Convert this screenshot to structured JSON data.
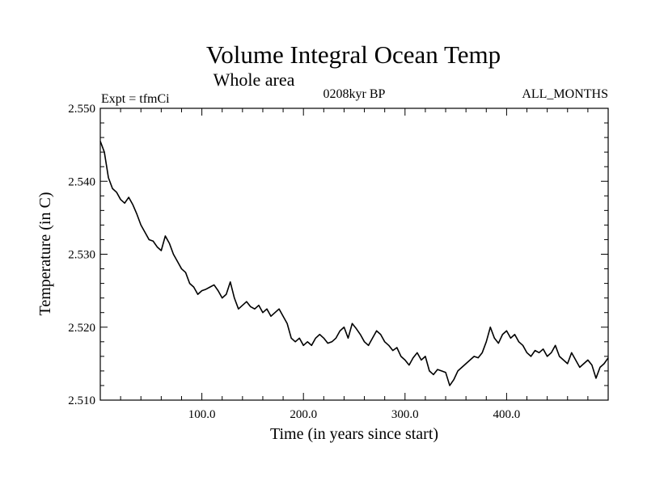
{
  "chart_data": {
    "type": "line",
    "title": "Volume Integral Ocean Temp",
    "subtitle": "Whole area",
    "annotations": {
      "left": "Expt = tfmCi",
      "center": "0208kyr BP",
      "right": "ALL_MONTHS"
    },
    "xlabel": "Time (in years since start)",
    "ylabel": "Temperature (in C)",
    "xlim": [
      0,
      500
    ],
    "ylim": [
      2.51,
      2.55
    ],
    "x_ticks": [
      100,
      200,
      300,
      400
    ],
    "x_tick_labels": [
      "100.0",
      "200.0",
      "300.0",
      "400.0"
    ],
    "y_ticks": [
      2.51,
      2.52,
      2.53,
      2.54,
      2.55
    ],
    "y_tick_labels": [
      "2.510",
      "2.520",
      "2.530",
      "2.540",
      "2.550"
    ],
    "grid": false,
    "series": [
      {
        "x": [
          0,
          4,
          8,
          12,
          16,
          20,
          24,
          28,
          32,
          36,
          40,
          44,
          48,
          52,
          56,
          60,
          64,
          68,
          72,
          76,
          80,
          84,
          88,
          92,
          96,
          100,
          104,
          108,
          112,
          116,
          120,
          124,
          128,
          132,
          136,
          140,
          144,
          148,
          152,
          156,
          160,
          164,
          168,
          172,
          176,
          180,
          184,
          188,
          192,
          196,
          200,
          204,
          208,
          212,
          216,
          220,
          224,
          228,
          232,
          236,
          240,
          244,
          248,
          252,
          256,
          260,
          264,
          268,
          272,
          276,
          280,
          284,
          288,
          292,
          296,
          300,
          304,
          308,
          312,
          316,
          320,
          324,
          328,
          332,
          336,
          340,
          344,
          348,
          352,
          356,
          360,
          364,
          368,
          372,
          376,
          380,
          384,
          388,
          392,
          396,
          400,
          404,
          408,
          412,
          416,
          420,
          424,
          428,
          432,
          436,
          440,
          444,
          448,
          452,
          456,
          460,
          464,
          468,
          472,
          476,
          480,
          484,
          488,
          492,
          496,
          500
        ],
        "values": [
          2.5455,
          2.544,
          2.5405,
          2.539,
          2.5385,
          2.5375,
          2.537,
          2.5378,
          2.5368,
          2.5355,
          2.534,
          2.533,
          2.532,
          2.5318,
          2.531,
          2.5305,
          2.5325,
          2.5315,
          2.53,
          2.529,
          2.528,
          2.5275,
          2.526,
          2.5255,
          2.5245,
          2.525,
          2.5252,
          2.5255,
          2.5258,
          2.525,
          2.524,
          2.5245,
          2.5262,
          2.524,
          2.5225,
          2.523,
          2.5235,
          2.5228,
          2.5225,
          2.523,
          2.522,
          2.5225,
          2.5215,
          2.522,
          2.5225,
          2.5215,
          2.5205,
          2.5185,
          2.518,
          2.5185,
          2.5175,
          2.518,
          2.5175,
          2.5185,
          2.519,
          2.5185,
          2.5178,
          2.518,
          2.5185,
          2.5195,
          2.52,
          2.5185,
          2.5205,
          2.5198,
          2.519,
          2.518,
          2.5175,
          2.5185,
          2.5195,
          2.519,
          2.518,
          2.5175,
          2.5168,
          2.5172,
          2.516,
          2.5155,
          2.5148,
          2.5158,
          2.5165,
          2.5155,
          2.516,
          2.514,
          2.5135,
          2.5142,
          2.514,
          2.5138,
          2.512,
          2.5128,
          2.514,
          2.5145,
          2.515,
          2.5155,
          2.516,
          2.5158,
          2.5165,
          2.518,
          2.52,
          2.5185,
          2.5178,
          2.519,
          2.5195,
          2.5185,
          2.519,
          2.518,
          2.5175,
          2.5165,
          2.516,
          2.5168,
          2.5165,
          2.517,
          2.516,
          2.5165,
          2.5175,
          2.516,
          2.5155,
          2.515,
          2.5165,
          2.5155,
          2.5145,
          2.515,
          2.5155,
          2.5148,
          2.513,
          2.5145,
          2.515,
          2.5158
        ]
      }
    ]
  }
}
